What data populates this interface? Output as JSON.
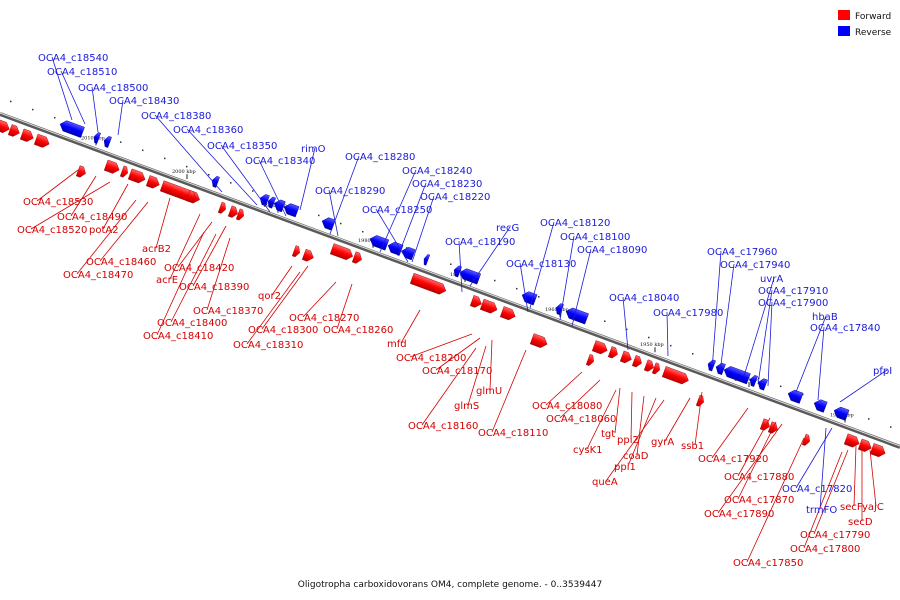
{
  "caption": "Oligotropha carboxidovorans OM4, complete genome. - 0..3539447",
  "legend": {
    "forward": {
      "label": "Forward",
      "color": "#ff0000"
    },
    "reverse": {
      "label": "Reverse",
      "color": "#0000ff"
    }
  },
  "ticks": [
    "2010 kbp",
    "2000 kbp",
    "1990 kbp",
    "1980 kbp",
    "1970 kbp",
    "1960 kbp",
    "1950 kbp",
    "1940 kbp",
    "1930 kbp"
  ],
  "reverse_labels": [
    "OCA4_c18540",
    "OCA4_c18510",
    "OCA4_c18500",
    "OCA4_c18430",
    "OCA4_c18380",
    "OCA4_c18360",
    "OCA4_c18350",
    "OCA4_c18340",
    "rimO",
    "OCA4_c18280",
    "OCA4_c18290",
    "OCA4_c18240",
    "OCA4_c18230",
    "OCA4_c18220",
    "OCA4_c18250",
    "recG",
    "OCA4_c18190",
    "OCA4_c18120",
    "OCA4_c18100",
    "OCA4_c18130",
    "OCA4_c18090",
    "OCA4_c18040",
    "OCA4_c17980",
    "OCA4_c17960",
    "OCA4_c17940",
    "uvrA",
    "OCA4_c17910",
    "OCA4_c17900",
    "hbaB",
    "OCA4_c17840",
    "pfpI",
    "OCA4_c17820",
    "trmFO"
  ],
  "forward_labels": [
    "OCA4_c18530",
    "OCA4_c18490",
    "OCA4_c18520",
    "potA2",
    "acrB2",
    "OCA4_c18460",
    "OCA4_c18470",
    "acrE",
    "OCA4_c18420",
    "OCA4_c18390",
    "OCA4_c18370",
    "OCA4_c18400",
    "OCA4_c18410",
    "qor2",
    "OCA4_c18300",
    "OCA4_c18310",
    "OCA4_c18270",
    "OCA4_c18260",
    "mfd",
    "OCA4_c18200",
    "OCA4_c18170",
    "glmU",
    "glmS",
    "OCA4_c18160",
    "OCA4_c18110",
    "OCA4_c18080",
    "OCA4_c18060",
    "tgt",
    "cysK1",
    "ppi2",
    "coaD",
    "ppi1",
    "queA",
    "gyrA",
    "ssb1",
    "OCA4_c17920",
    "OCA4_c17880",
    "OCA4_c17870",
    "OCA4_c17890",
    "secF",
    "yajC",
    "secD",
    "OCA4_c17790",
    "OCA4_c17800",
    "OCA4_c17850"
  ]
}
